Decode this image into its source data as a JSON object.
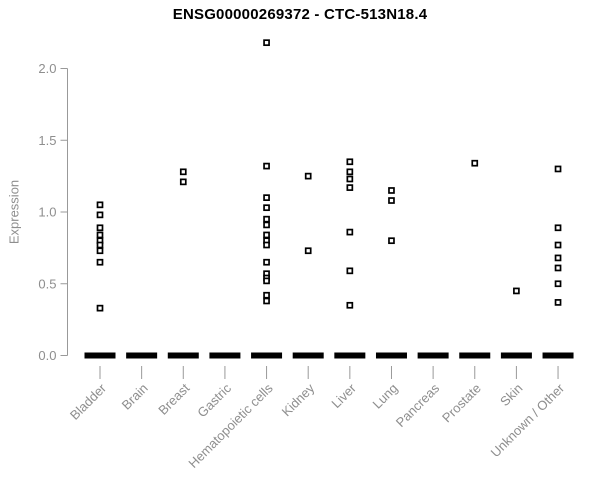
{
  "chart_data": {
    "type": "scatter",
    "subtype": "strip-plot",
    "title": "ENSG00000269372 - CTC-513N18.4",
    "ylabel": "Expression",
    "xlabel": "",
    "ylim": [
      0,
      2.2
    ],
    "yticks": [
      0.0,
      0.5,
      1.0,
      1.5,
      2.0
    ],
    "ytick_labels": [
      "0.0",
      "0.5",
      "1.0",
      "1.5",
      "2.0"
    ],
    "grid": false,
    "legend": false,
    "marker": "open-square",
    "colors": {
      "points": "#000000",
      "axis_line": "#999999",
      "tick_text": "#8e8e8e",
      "title": "#000000",
      "background": "#ffffff"
    },
    "categories": [
      "Bladder",
      "Brain",
      "Breast",
      "Gastric",
      "Hematopoietic cells",
      "Kidney",
      "Liver",
      "Lung",
      "Pancreas",
      "Prostate",
      "Skin",
      "Unknown / Other"
    ],
    "series": [
      {
        "category": "Bladder",
        "values": [
          1.05,
          0.98,
          0.89,
          0.84,
          0.8,
          0.77,
          0.73,
          0.65,
          0.33
        ],
        "zero_cluster": true
      },
      {
        "category": "Brain",
        "values": [],
        "zero_cluster": true
      },
      {
        "category": "Breast",
        "values": [
          1.28,
          1.21
        ],
        "zero_cluster": true
      },
      {
        "category": "Gastric",
        "values": [],
        "zero_cluster": true
      },
      {
        "category": "Hematopoietic cells",
        "values": [
          2.18,
          1.32,
          1.1,
          1.03,
          0.95,
          0.91,
          0.84,
          0.8,
          0.77,
          0.65,
          0.57,
          0.54,
          0.52,
          0.42,
          0.38
        ],
        "zero_cluster": true
      },
      {
        "category": "Kidney",
        "values": [
          1.25,
          0.73
        ],
        "zero_cluster": true
      },
      {
        "category": "Liver",
        "values": [
          1.35,
          1.28,
          1.23,
          1.17,
          0.86,
          0.59,
          0.35
        ],
        "zero_cluster": true
      },
      {
        "category": "Lung",
        "values": [
          1.15,
          1.08,
          0.8
        ],
        "zero_cluster": true
      },
      {
        "category": "Pancreas",
        "values": [],
        "zero_cluster": true
      },
      {
        "category": "Prostate",
        "values": [
          1.34
        ],
        "zero_cluster": true
      },
      {
        "category": "Skin",
        "values": [
          0.45
        ],
        "zero_cluster": true
      },
      {
        "category": "Unknown / Other",
        "values": [
          1.3,
          0.89,
          0.77,
          0.68,
          0.61,
          0.5,
          0.37
        ],
        "zero_cluster": true
      }
    ]
  }
}
